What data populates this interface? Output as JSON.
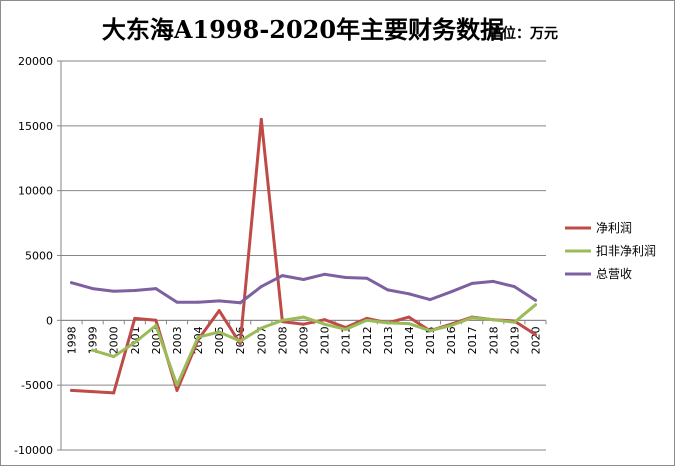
{
  "chart_data": {
    "type": "line",
    "title": "大东海A1998-2020年主要财务数据",
    "subtitle": "单位：万元",
    "xlabel": "",
    "ylabel": "",
    "ylim": [
      -10000,
      20000
    ],
    "yticks": [
      20000,
      15000,
      10000,
      5000,
      0,
      -5000,
      -10000
    ],
    "grid": true,
    "legend_position": "right",
    "categories": [
      "1998",
      "1999",
      "2000",
      "2001",
      "2002",
      "2003",
      "2004",
      "2005",
      "2006",
      "2007",
      "2008",
      "2009",
      "2010",
      "2011",
      "2012",
      "2013",
      "2014",
      "2015",
      "2016",
      "2017",
      "2018",
      "2019",
      "2020"
    ],
    "series": [
      {
        "name": "净利润",
        "color": "#be4b48",
        "values": [
          -5400,
          -5500,
          -5600,
          150,
          0,
          -5400,
          -1500,
          750,
          -1800,
          15500,
          -100,
          -300,
          50,
          -550,
          150,
          -200,
          250,
          -800,
          -300,
          250,
          50,
          -50,
          -1100
        ]
      },
      {
        "name": "扣非净利润",
        "color": "#9bbb59",
        "values": [
          null,
          -2300,
          -2800,
          -1700,
          -400,
          -5000,
          -1300,
          -900,
          -1600,
          -600,
          0,
          250,
          -300,
          -700,
          0,
          -200,
          -250,
          -800,
          -400,
          200,
          50,
          -150,
          1200
        ]
      },
      {
        "name": "总营收",
        "color": "#7d60a0",
        "values": [
          2900,
          2450,
          2250,
          2300,
          2450,
          1400,
          1400,
          1500,
          1350,
          2600,
          3450,
          3150,
          3550,
          3300,
          3250,
          2350,
          2050,
          1600,
          2200,
          2850,
          3000,
          2600,
          1550
        ]
      }
    ]
  }
}
